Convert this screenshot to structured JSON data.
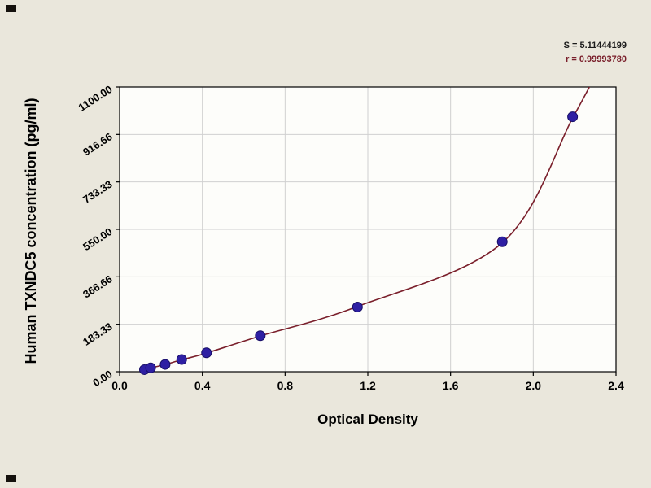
{
  "chart_data": {
    "type": "scatter",
    "title": "",
    "xlabel": "Optical Density",
    "ylabel": "Human TXNDC5 concentration (pg/ml)",
    "xlim": [
      0,
      2.4
    ],
    "ylim": [
      0,
      1100
    ],
    "x_ticks": [
      0,
      0.4,
      0.8,
      1.2,
      1.6,
      2.0,
      2.4
    ],
    "x_tick_labels": [
      "0.0",
      "0.4",
      "0.8",
      "1.2",
      "1.6",
      "2.0",
      "2.4"
    ],
    "y_ticks": [
      0,
      183.33,
      366.66,
      550,
      733.33,
      916.66,
      1100
    ],
    "y_tick_labels": [
      "0.00",
      "183.33",
      "366.66",
      "550.00",
      "733.33",
      "916.66",
      "1100.00"
    ],
    "grid": true,
    "legend": "none",
    "annotations": [
      "S = 5.11444199",
      "r = 0.99993780"
    ],
    "series": [
      {
        "name": "fit-curve",
        "type": "line",
        "color": "#7a1f2b",
        "x": [
          0.1,
          0.15,
          0.22,
          0.3,
          0.42,
          0.68,
          1.15,
          1.85,
          2.19,
          2.33
        ],
        "y": [
          2,
          14,
          28,
          46,
          72,
          138,
          252,
          498,
          980,
          1190
        ]
      },
      {
        "name": "standard-points",
        "type": "scatter",
        "marker": "circle",
        "color": "#2e1fa3",
        "edge_color": "#170e66",
        "x": [
          0.12,
          0.15,
          0.22,
          0.3,
          0.42,
          0.68,
          1.15,
          1.85,
          2.19
        ],
        "y": [
          8,
          15,
          28,
          47,
          73,
          139,
          250,
          502,
          985
        ]
      }
    ],
    "colors": {
      "page_bg": "#eae7dc",
      "plot_bg": "#fdfdfa",
      "grid": "#d0d0d0",
      "axis": "#000000",
      "tick_text": "#000000",
      "stat_s": "#1a1a1a",
      "stat_r": "#7a1f2b"
    }
  }
}
